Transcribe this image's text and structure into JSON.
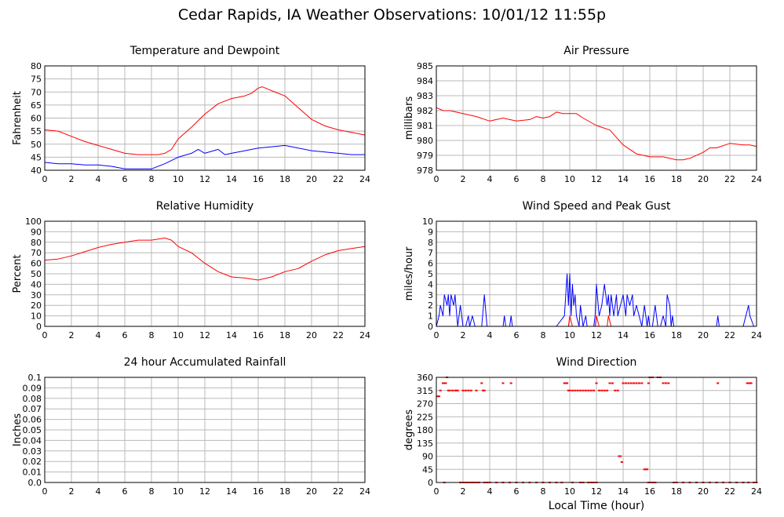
{
  "page": {
    "title": "Cedar Rapids, IA Weather Observations: 10/01/12 11:55p",
    "x_axis_label": "Local Time (hour)"
  },
  "colors": {
    "red": "#ff0000",
    "blue": "#0000ff",
    "grid": "#b8b8b8",
    "frame": "#000000"
  },
  "chart_data": [
    {
      "id": "temp",
      "type": "line",
      "title": "Temperature and Dewpoint",
      "ylabel": "Fahrenheit",
      "xlim": [
        0,
        24
      ],
      "ylim": [
        40,
        80
      ],
      "xticks": [
        0,
        2,
        4,
        6,
        8,
        10,
        12,
        14,
        16,
        18,
        20,
        22,
        24
      ],
      "yticks": [
        40,
        45,
        50,
        55,
        60,
        65,
        70,
        75,
        80
      ],
      "series": [
        {
          "color": "#ff0000",
          "x": [
            0,
            1,
            2,
            3,
            4,
            5,
            6,
            7,
            8,
            8.5,
            9,
            9.5,
            10,
            11,
            12,
            13,
            14,
            15,
            15.5,
            16,
            16.3,
            17,
            18,
            19,
            20,
            21,
            22,
            23,
            24
          ],
          "y": [
            55.5,
            55,
            53,
            51,
            49.5,
            48,
            46.5,
            46,
            46,
            46,
            46.5,
            48,
            52,
            56.5,
            61.5,
            65.5,
            67.5,
            68.5,
            69.5,
            71.5,
            72,
            70.5,
            68.5,
            64,
            59.5,
            57,
            55.5,
            54.5,
            53.5
          ]
        },
        {
          "color": "#0000ff",
          "x": [
            0,
            1,
            2,
            3,
            4,
            5,
            6,
            7,
            8,
            9,
            10,
            11,
            11.5,
            12,
            13,
            13.5,
            14,
            15,
            16,
            17,
            18,
            19,
            20,
            21,
            22,
            23,
            24
          ],
          "y": [
            43,
            42.5,
            42.5,
            42,
            42,
            41.5,
            40.5,
            40.5,
            40.5,
            42.5,
            45,
            46.5,
            48,
            46.5,
            48,
            46,
            46.5,
            47.5,
            48.5,
            49,
            49.5,
            48.5,
            47.5,
            47,
            46.5,
            46,
            46
          ]
        }
      ]
    },
    {
      "id": "pressure",
      "type": "line",
      "title": "Air Pressure",
      "ylabel": "millibars",
      "xlim": [
        0,
        24
      ],
      "ylim": [
        978,
        985
      ],
      "xticks": [
        0,
        2,
        4,
        6,
        8,
        10,
        12,
        14,
        16,
        18,
        20,
        22,
        24
      ],
      "yticks": [
        978,
        979,
        980,
        981,
        982,
        983,
        984,
        985
      ],
      "series": [
        {
          "color": "#ff0000",
          "x": [
            0,
            0.5,
            1,
            2,
            3,
            4,
            4.5,
            5,
            6,
            7,
            7.5,
            8,
            8.5,
            9,
            9.5,
            10,
            10.5,
            11,
            12,
            13,
            13.5,
            14,
            15,
            16,
            17,
            18,
            18.5,
            19,
            20,
            20.5,
            21,
            22,
            23,
            23.5,
            24
          ],
          "y": [
            982.2,
            982.0,
            982.0,
            981.8,
            981.6,
            981.3,
            981.4,
            981.5,
            981.3,
            981.4,
            981.6,
            981.5,
            981.6,
            981.9,
            981.8,
            981.8,
            981.8,
            981.5,
            981.0,
            980.7,
            980.2,
            979.7,
            979.1,
            978.9,
            978.9,
            978.7,
            978.7,
            978.8,
            979.2,
            979.5,
            979.5,
            979.8,
            979.7,
            979.7,
            979.6
          ]
        }
      ]
    },
    {
      "id": "humidity",
      "type": "line",
      "title": "Relative Humidity",
      "ylabel": "Percent",
      "xlim": [
        0,
        24
      ],
      "ylim": [
        0,
        100
      ],
      "xticks": [
        0,
        2,
        4,
        6,
        8,
        10,
        12,
        14,
        16,
        18,
        20,
        22,
        24
      ],
      "yticks": [
        0,
        10,
        20,
        30,
        40,
        50,
        60,
        70,
        80,
        90,
        100
      ],
      "series": [
        {
          "color": "#ff0000",
          "x": [
            0,
            1,
            2,
            3,
            4,
            5,
            6,
            7,
            8,
            9,
            9.5,
            10,
            11,
            12,
            13,
            14,
            15,
            16,
            17,
            18,
            19,
            20,
            21,
            22,
            23,
            24
          ],
          "y": [
            63,
            64,
            67,
            71,
            75,
            78,
            80,
            82,
            82,
            84,
            82,
            76,
            70,
            60,
            52,
            47,
            46,
            44,
            47,
            52,
            55,
            62,
            68,
            72,
            74,
            76
          ]
        }
      ]
    },
    {
      "id": "wind",
      "type": "line",
      "title": "Wind Speed and Peak Gust",
      "ylabel": "miles/hour",
      "xlim": [
        0,
        24
      ],
      "ylim": [
        0,
        10
      ],
      "xticks": [
        0,
        2,
        4,
        6,
        8,
        10,
        12,
        14,
        16,
        18,
        20,
        22,
        24
      ],
      "yticks": [
        0,
        1,
        2,
        3,
        4,
        5,
        6,
        7,
        8,
        9,
        10
      ],
      "series": [
        {
          "color": "#0000ff",
          "x": [
            0,
            0.2,
            0.3,
            0.5,
            0.6,
            0.8,
            0.9,
            1.0,
            1.1,
            1.3,
            1.4,
            1.6,
            1.8,
            2.0,
            2.2,
            2.4,
            2.5,
            2.7,
            2.9,
            3.0,
            3.2,
            3.4,
            3.6,
            3.8,
            4.0,
            5.0,
            5.1,
            5.2,
            5.5,
            5.6,
            5.7,
            6.0,
            9.0,
            9.6,
            9.7,
            9.8,
            9.9,
            10.0,
            10.1,
            10.2,
            10.3,
            10.4,
            10.5,
            10.7,
            10.8,
            10.9,
            11.0,
            11.2,
            11.3,
            11.5,
            11.8,
            11.9,
            12.0,
            12.2,
            12.4,
            12.6,
            12.8,
            12.9,
            13.0,
            13.1,
            13.3,
            13.5,
            13.6,
            13.8,
            14.0,
            14.2,
            14.3,
            14.5,
            14.7,
            14.8,
            15.0,
            15.2,
            15.4,
            15.6,
            15.7,
            15.8,
            15.9,
            16.0,
            16.2,
            16.4,
            16.6,
            16.8,
            17.0,
            17.2,
            17.3,
            17.5,
            17.6,
            17.7,
            17.8,
            18.0,
            21.0,
            21.1,
            21.2,
            23.0,
            23.2,
            23.4,
            23.5,
            23.8,
            24.0
          ],
          "y": [
            0,
            1,
            2,
            1,
            3,
            2,
            3,
            1,
            3,
            2,
            3,
            0,
            2,
            0,
            0,
            1,
            0,
            1,
            0,
            0,
            0,
            0,
            3,
            0,
            0,
            0,
            1,
            0,
            0,
            1,
            0,
            0,
            0,
            1,
            3,
            5,
            2,
            5,
            1,
            4,
            2,
            3,
            1,
            0,
            2,
            1,
            0,
            1,
            0,
            0,
            0,
            1,
            4,
            1,
            2,
            4,
            2,
            3,
            1,
            3,
            1,
            3,
            1,
            2,
            3,
            1,
            3,
            2,
            3,
            1,
            2,
            1,
            0,
            2,
            1,
            0,
            1,
            0,
            0,
            2,
            0,
            0,
            1,
            0,
            3,
            2,
            0,
            1,
            0,
            0,
            0,
            1,
            0,
            0,
            1,
            2,
            1,
            0,
            0
          ]
        },
        {
          "color": "#ff0000",
          "x": [
            0,
            9.9,
            10.0,
            10.2,
            10.4,
            11.9,
            12.0,
            12.2,
            12.8,
            12.9,
            13.1,
            24
          ],
          "y": [
            0,
            0,
            1,
            0,
            0,
            0,
            1,
            0,
            0,
            1,
            0,
            0
          ]
        }
      ]
    },
    {
      "id": "rain",
      "type": "line",
      "title": "24 hour Accumulated Rainfall",
      "ylabel": "Inches",
      "xlim": [
        0,
        24
      ],
      "ylim": [
        0,
        0.1
      ],
      "xticks": [
        0,
        2,
        4,
        6,
        8,
        10,
        12,
        14,
        16,
        18,
        20,
        22,
        24
      ],
      "yticks": [
        0.0,
        0.01,
        0.02,
        0.03,
        0.04,
        0.05,
        0.06,
        0.07,
        0.08,
        0.09,
        0.1
      ],
      "ytick_labels": [
        "0.0",
        "0.01",
        "0.02",
        "0.03",
        "0.04",
        "0.05",
        "0.06",
        "0.07",
        "0.08",
        "0.09",
        "0.1"
      ],
      "series": [
        {
          "color": "#ff0000",
          "x": [
            0,
            24
          ],
          "y": [
            0,
            0
          ]
        }
      ]
    },
    {
      "id": "direction",
      "type": "scatter",
      "title": "Wind Direction",
      "ylabel": "degrees",
      "xlim": [
        0,
        24
      ],
      "ylim": [
        0,
        360
      ],
      "xticks": [
        0,
        2,
        4,
        6,
        8,
        10,
        12,
        14,
        16,
        18,
        20,
        22,
        24
      ],
      "yticks": [
        0,
        45,
        90,
        135,
        180,
        225,
        270,
        315,
        360
      ],
      "xlabel_shown": true,
      "series": [
        {
          "color": "#ff0000",
          "x": [
            0.1,
            0.2,
            0.3,
            0.5,
            0.6,
            0.7,
            0.8,
            0.9,
            1.0,
            1.2,
            1.4,
            1.5,
            1.6,
            2.0,
            2.2,
            2.4,
            2.6,
            3.0,
            3.4,
            3.5,
            3.6,
            5.0,
            5.6,
            9.6,
            9.7,
            9.8,
            9.9,
            10.0,
            10.2,
            10.4,
            10.6,
            10.8,
            11.0,
            11.2,
            11.4,
            11.6,
            11.8,
            12.0,
            12.2,
            12.4,
            12.6,
            12.8,
            13.0,
            13.2,
            13.4,
            13.6,
            13.7,
            13.8,
            13.9,
            14.0,
            14.2,
            14.4,
            14.6,
            14.8,
            15.0,
            15.2,
            15.4,
            15.6,
            15.7,
            15.8,
            15.9,
            16.0,
            16.2,
            16.6,
            16.8,
            17.0,
            17.2,
            17.4,
            21.1,
            23.3,
            23.4,
            23.5,
            23.6,
            0.6,
            1.8,
            2.0,
            2.2,
            2.4,
            2.6,
            2.8,
            3.0,
            3.2,
            3.6,
            3.8,
            4.0,
            4.5,
            5.0,
            5.5,
            6.0,
            6.5,
            7.0,
            7.5,
            8.0,
            8.5,
            9.0,
            9.4,
            10.2,
            10.8,
            11.0,
            11.4,
            11.6,
            11.8,
            12.0,
            15.9,
            16.0,
            16.2,
            16.4,
            17.8,
            18.0,
            18.5,
            19.0,
            19.5,
            20.0,
            20.5,
            21.0,
            21.5,
            22.0,
            22.5,
            23.0,
            23.4,
            23.8,
            24.0
          ],
          "y": [
            295,
            295,
            315,
            340,
            340,
            340,
            360,
            315,
            315,
            315,
            315,
            315,
            315,
            315,
            315,
            315,
            315,
            315,
            340,
            315,
            315,
            340,
            340,
            340,
            340,
            340,
            315,
            315,
            315,
            315,
            315,
            315,
            315,
            315,
            315,
            315,
            315,
            340,
            315,
            315,
            315,
            315,
            340,
            340,
            315,
            315,
            90,
            90,
            70,
            340,
            340,
            340,
            340,
            340,
            340,
            340,
            340,
            45,
            45,
            45,
            340,
            360,
            360,
            360,
            360,
            340,
            340,
            340,
            340,
            340,
            340,
            340,
            340,
            0,
            0,
            0,
            0,
            0,
            0,
            0,
            0,
            0,
            0,
            0,
            0,
            0,
            0,
            0,
            0,
            0,
            0,
            0,
            0,
            0,
            0,
            0,
            0,
            0,
            0,
            0,
            0,
            0,
            0,
            0,
            0,
            0,
            0,
            0,
            0,
            0,
            0,
            0,
            0,
            0,
            0,
            0,
            0,
            0,
            0,
            0,
            0,
            0
          ]
        }
      ]
    }
  ]
}
